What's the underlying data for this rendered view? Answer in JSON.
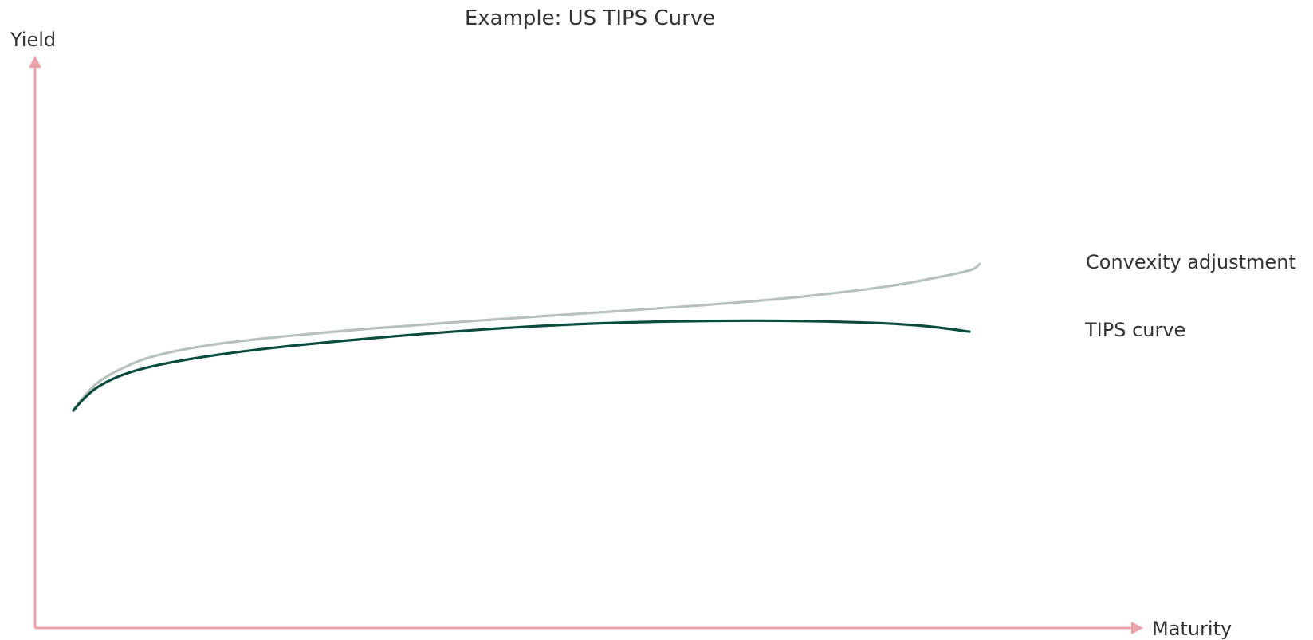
{
  "chart_data": {
    "type": "line",
    "title": "Example: US TIPS Curve",
    "xlabel": "Maturity",
    "ylabel": "Yield",
    "xlim": [
      0,
      100
    ],
    "ylim": [
      0,
      100
    ],
    "grid": false,
    "axis_color": "#e8a2a8",
    "series": [
      {
        "name": "Convexity adjustment",
        "color": "#b8c2bc",
        "x": [
          0,
          1,
          2.5,
          5,
          8,
          13,
          20,
          30,
          40,
          50,
          60,
          70,
          80,
          85,
          89,
          90
        ],
        "y": [
          38.0,
          40.3,
          43.0,
          45.5,
          47.5,
          49.3,
          50.8,
          52.4,
          53.7,
          54.9,
          56.1,
          57.5,
          59.5,
          61.0,
          62.5,
          63.6
        ]
      },
      {
        "name": "TIPS curve",
        "color": "#0a4d3f",
        "x": [
          0,
          1,
          2.5,
          5,
          8,
          13,
          20,
          30,
          40,
          50,
          60,
          70,
          80,
          85,
          89
        ],
        "y": [
          38.0,
          40.0,
          42.2,
          44.3,
          45.8,
          47.4,
          49.0,
          50.7,
          52.1,
          53.1,
          53.6,
          53.7,
          53.3,
          52.7,
          51.8
        ]
      }
    ]
  }
}
